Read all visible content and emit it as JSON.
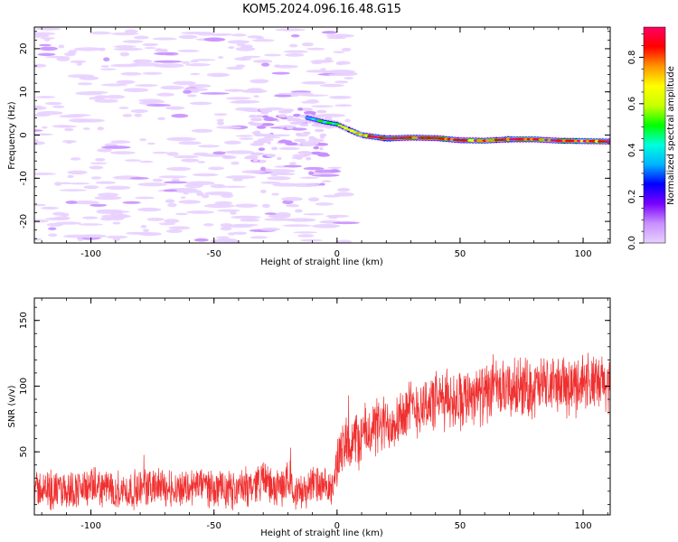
{
  "page_title": "KOM5.2024.096.16.48.G15",
  "colors": {
    "snr_line": "#f03030",
    "axis": "#000000",
    "colormap": [
      "#e8d0ff",
      "#c890ff",
      "#7a00ff",
      "#0000ff",
      "#00b4ff",
      "#00ffdc",
      "#00ff00",
      "#c8ff00",
      "#ffff00",
      "#ff9600",
      "#ff0000",
      "#ff0064"
    ]
  },
  "chart_data": [
    {
      "type": "heatmap",
      "title": "KOM5.2024.096.16.48.G15",
      "xlabel": "Height of straight line (km)",
      "ylabel": "Frequency (Hz)",
      "xlim": [
        -123,
        111
      ],
      "ylim": [
        -25,
        25
      ],
      "x_ticks": [
        -100,
        -50,
        0,
        50,
        100
      ],
      "y_ticks": [
        -20,
        -10,
        0,
        10,
        20
      ],
      "x_tick_labels": [
        "-100",
        "-50",
        "0",
        "50",
        "100"
      ],
      "y_tick_labels": [
        "-20",
        "-10",
        "0",
        "10",
        "20"
      ],
      "colorbar": {
        "label": "Normalized spectral amplitude",
        "range": [
          0,
          0.93
        ],
        "ticks": [
          0.0,
          0.2,
          0.4,
          0.6,
          0.8
        ],
        "tick_labels": [
          "0.0",
          "0.2",
          "0.4",
          "0.6",
          "0.8"
        ]
      },
      "ridge": [
        {
          "x": -12,
          "freq": 4.0,
          "amp": 0.35
        },
        {
          "x": -5,
          "freq": 3.0,
          "amp": 0.45
        },
        {
          "x": 0,
          "freq": 2.5,
          "amp": 0.5
        },
        {
          "x": 5,
          "freq": 1.2,
          "amp": 0.6
        },
        {
          "x": 10,
          "freq": 0.0,
          "amp": 0.7
        },
        {
          "x": 15,
          "freq": -0.4,
          "amp": 0.85
        },
        {
          "x": 20,
          "freq": -0.8,
          "amp": 0.9
        },
        {
          "x": 30,
          "freq": -0.6,
          "amp": 0.8
        },
        {
          "x": 40,
          "freq": -0.7,
          "amp": 0.85
        },
        {
          "x": 50,
          "freq": -1.2,
          "amp": 0.75
        },
        {
          "x": 60,
          "freq": -1.3,
          "amp": 0.8
        },
        {
          "x": 70,
          "freq": -1.0,
          "amp": 0.9
        },
        {
          "x": 80,
          "freq": -1.0,
          "amp": 0.8
        },
        {
          "x": 90,
          "freq": -1.3,
          "amp": 0.85
        },
        {
          "x": 100,
          "freq": -1.4,
          "amp": 0.8
        },
        {
          "x": 111,
          "freq": -1.5,
          "amp": 0.8
        }
      ]
    },
    {
      "type": "line",
      "xlabel": "Height of straight line (km)",
      "ylabel": "SNR (v/v)",
      "xlim": [
        -123,
        111
      ],
      "ylim": [
        2,
        167
      ],
      "x_ticks": [
        -100,
        -50,
        0,
        50,
        100
      ],
      "y_ticks": [
        50,
        100,
        150
      ],
      "x_tick_labels": [
        "-100",
        "-50",
        "0",
        "50",
        "100"
      ],
      "y_tick_labels": [
        "50",
        "100",
        "150"
      ],
      "series": [
        {
          "color": "#f03030",
          "x": [
            -123,
            -115,
            -105,
            -95,
            -85,
            -75,
            -65,
            -55,
            -45,
            -35,
            -30,
            -25,
            -20,
            -15,
            -10,
            -5,
            -2,
            0,
            5,
            10,
            15,
            20,
            25,
            30,
            35,
            40,
            45,
            50,
            55,
            60,
            65,
            70,
            75,
            80,
            85,
            90,
            95,
            100,
            105,
            111
          ],
          "y": [
            22,
            20,
            22,
            23,
            20,
            24,
            22,
            25,
            20,
            24,
            30,
            20,
            28,
            18,
            26,
            22,
            20,
            45,
            55,
            62,
            68,
            70,
            78,
            82,
            86,
            88,
            90,
            90,
            95,
            93,
            97,
            96,
            100,
            98,
            100,
            102,
            98,
            105,
            100,
            102
          ]
        }
      ]
    }
  ]
}
